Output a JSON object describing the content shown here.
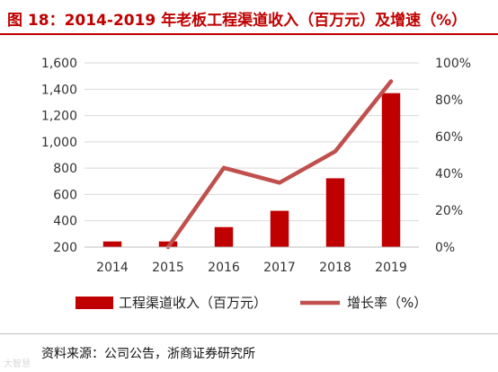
{
  "title": "图 18：2014-2019 年老板工程渠道收入（百万元）及增速（%）",
  "source": "资料来源：公司公告，浙商证券研究所",
  "watermark": "大智慧",
  "colors": {
    "bar": "#c00000",
    "line": "#c0504d",
    "title": "#c00000",
    "grid": "#d9d9d9"
  },
  "chart_data": {
    "type": "bar",
    "categories": [
      "2014",
      "2015",
      "2016",
      "2017",
      "2018",
      "2019"
    ],
    "series": [
      {
        "name": "工程渠道收入（百万元）",
        "type": "bar",
        "axis": "left",
        "values": [
          243,
          243,
          352,
          476,
          723,
          1370
        ]
      },
      {
        "name": "增长率（%）",
        "type": "line",
        "axis": "right",
        "values": [
          null,
          0,
          43,
          35,
          52,
          90
        ]
      }
    ],
    "yleft": {
      "lim": [
        200,
        1600
      ],
      "ticks": [
        "200",
        "400",
        "600",
        "800",
        "1,000",
        "1,200",
        "1,400",
        "1,600"
      ]
    },
    "yright": {
      "lim": [
        0,
        100
      ],
      "ticks": [
        "0%",
        "20%",
        "40%",
        "60%",
        "80%",
        "100%"
      ]
    },
    "grid": true,
    "legend_position": "bottom"
  }
}
